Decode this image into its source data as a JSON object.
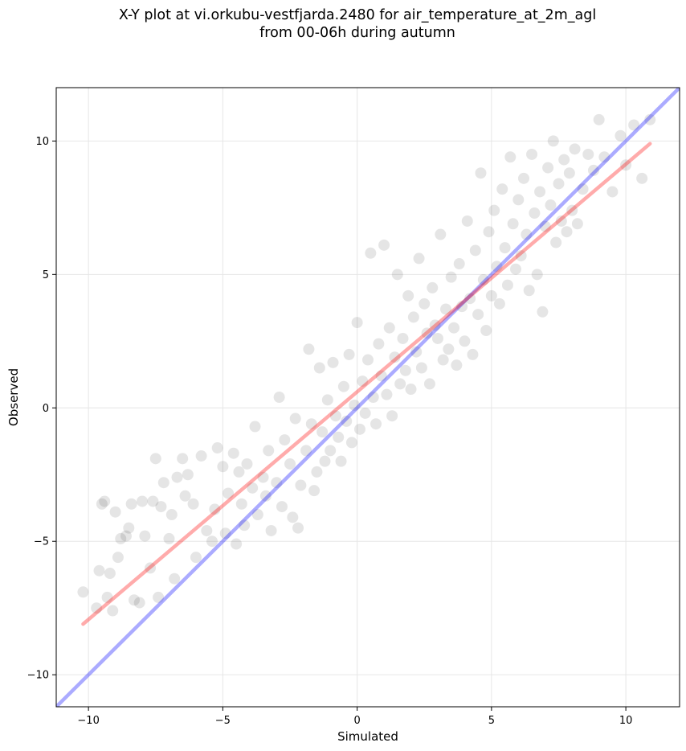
{
  "chart_data": {
    "type": "scatter",
    "title_line1": "X-Y plot at vi.orkubu-vestfjarda.2480 for air_temperature_at_2m_agl",
    "title_line2": "from 00-06h during autumn",
    "xlabel": "Simulated",
    "ylabel": "Observed",
    "xlim": [
      -11.2,
      12.0
    ],
    "ylim": [
      -11.2,
      12.0
    ],
    "xticks": [
      -10,
      -5,
      0,
      5,
      10
    ],
    "yticks": [
      -10,
      -5,
      0,
      5,
      10
    ],
    "tick_labels": [
      "−10",
      "−5",
      "0",
      "5",
      "10"
    ],
    "grid": true,
    "point_color": "#000000",
    "point_alpha": 0.1,
    "series": [
      {
        "role": "identity line",
        "color": "#0000ff",
        "x": [
          -11.2,
          12.0
        ],
        "y": [
          -11.2,
          12.0
        ]
      },
      {
        "role": "regression fit",
        "color": "#ff0000",
        "x": [
          -10.2,
          10.9
        ],
        "y": [
          -8.1,
          9.9
        ]
      }
    ],
    "points": [
      [
        -10.2,
        -6.9
      ],
      [
        -9.7,
        -7.5
      ],
      [
        -9.6,
        -6.1
      ],
      [
        -9.5,
        -3.6
      ],
      [
        -9.4,
        -3.5
      ],
      [
        -9.3,
        -7.1
      ],
      [
        -9.2,
        -6.2
      ],
      [
        -9.1,
        -7.6
      ],
      [
        -9.0,
        -3.9
      ],
      [
        -8.9,
        -5.6
      ],
      [
        -8.8,
        -4.9
      ],
      [
        -8.6,
        -4.8
      ],
      [
        -8.5,
        -4.5
      ],
      [
        -8.4,
        -3.6
      ],
      [
        -8.3,
        -7.2
      ],
      [
        -8.1,
        -7.3
      ],
      [
        -8.0,
        -3.5
      ],
      [
        -7.9,
        -4.8
      ],
      [
        -7.7,
        -6.0
      ],
      [
        -7.6,
        -3.5
      ],
      [
        -7.5,
        -1.9
      ],
      [
        -7.4,
        -7.1
      ],
      [
        -7.3,
        -3.7
      ],
      [
        -7.2,
        -2.8
      ],
      [
        -7.0,
        -4.9
      ],
      [
        -6.9,
        -4.0
      ],
      [
        -6.8,
        -6.4
      ],
      [
        -6.7,
        -2.6
      ],
      [
        -6.5,
        -1.9
      ],
      [
        -6.4,
        -3.3
      ],
      [
        -6.3,
        -2.5
      ],
      [
        -6.1,
        -3.6
      ],
      [
        -6.0,
        -5.6
      ],
      [
        -5.8,
        -1.8
      ],
      [
        -5.6,
        -4.6
      ],
      [
        -5.4,
        -5.0
      ],
      [
        -5.3,
        -3.8
      ],
      [
        -5.2,
        -1.5
      ],
      [
        -5.0,
        -2.2
      ],
      [
        -4.9,
        -4.7
      ],
      [
        -4.8,
        -3.2
      ],
      [
        -4.6,
        -1.7
      ],
      [
        -4.5,
        -5.1
      ],
      [
        -4.4,
        -2.4
      ],
      [
        -4.3,
        -3.6
      ],
      [
        -4.2,
        -4.4
      ],
      [
        -4.1,
        -2.1
      ],
      [
        -3.9,
        -3.0
      ],
      [
        -3.8,
        -0.7
      ],
      [
        -3.7,
        -4.0
      ],
      [
        -3.5,
        -2.6
      ],
      [
        -3.4,
        -3.3
      ],
      [
        -3.3,
        -1.6
      ],
      [
        -3.2,
        -4.6
      ],
      [
        -3.0,
        -2.8
      ],
      [
        -2.9,
        0.4
      ],
      [
        -2.8,
        -3.7
      ],
      [
        -2.7,
        -1.2
      ],
      [
        -2.5,
        -2.1
      ],
      [
        -2.4,
        -4.1
      ],
      [
        -2.3,
        -0.4
      ],
      [
        -2.2,
        -4.5
      ],
      [
        -2.1,
        -2.9
      ],
      [
        -1.9,
        -1.6
      ],
      [
        -1.8,
        2.2
      ],
      [
        -1.7,
        -0.6
      ],
      [
        -1.6,
        -3.1
      ],
      [
        -1.5,
        -2.4
      ],
      [
        -1.4,
        1.5
      ],
      [
        -1.3,
        -0.9
      ],
      [
        -1.2,
        -2.0
      ],
      [
        -1.1,
        0.3
      ],
      [
        -1.0,
        -1.6
      ],
      [
        -0.9,
        1.7
      ],
      [
        -0.8,
        -0.3
      ],
      [
        -0.7,
        -1.1
      ],
      [
        -0.6,
        -2.0
      ],
      [
        -0.5,
        0.8
      ],
      [
        -0.4,
        -0.5
      ],
      [
        -0.3,
        2.0
      ],
      [
        -0.2,
        -1.3
      ],
      [
        -0.1,
        0.1
      ],
      [
        0.0,
        3.2
      ],
      [
        0.1,
        -0.8
      ],
      [
        0.2,
        1.0
      ],
      [
        0.3,
        -0.2
      ],
      [
        0.4,
        1.8
      ],
      [
        0.5,
        5.8
      ],
      [
        0.6,
        0.4
      ],
      [
        0.7,
        -0.6
      ],
      [
        0.8,
        2.4
      ],
      [
        0.9,
        1.2
      ],
      [
        1.0,
        6.1
      ],
      [
        1.1,
        0.5
      ],
      [
        1.2,
        3.0
      ],
      [
        1.3,
        -0.3
      ],
      [
        1.4,
        1.9
      ],
      [
        1.5,
        5.0
      ],
      [
        1.6,
        0.9
      ],
      [
        1.7,
        2.6
      ],
      [
        1.8,
        1.4
      ],
      [
        1.9,
        4.2
      ],
      [
        2.0,
        0.7
      ],
      [
        2.1,
        3.4
      ],
      [
        2.2,
        2.1
      ],
      [
        2.3,
        5.6
      ],
      [
        2.4,
        1.5
      ],
      [
        2.5,
        3.9
      ],
      [
        2.6,
        2.8
      ],
      [
        2.7,
        0.9
      ],
      [
        2.8,
        4.5
      ],
      [
        2.9,
        3.1
      ],
      [
        3.0,
        2.6
      ],
      [
        3.1,
        6.5
      ],
      [
        3.2,
        1.8
      ],
      [
        3.3,
        3.7
      ],
      [
        3.4,
        2.2
      ],
      [
        3.5,
        4.9
      ],
      [
        3.6,
        3.0
      ],
      [
        3.7,
        1.6
      ],
      [
        3.8,
        5.4
      ],
      [
        3.9,
        3.8
      ],
      [
        4.0,
        2.5
      ],
      [
        4.1,
        7.0
      ],
      [
        4.2,
        4.1
      ],
      [
        4.3,
        2.0
      ],
      [
        4.4,
        5.9
      ],
      [
        4.5,
        3.5
      ],
      [
        4.6,
        8.8
      ],
      [
        4.7,
        4.8
      ],
      [
        4.8,
        2.9
      ],
      [
        4.9,
        6.6
      ],
      [
        5.0,
        4.2
      ],
      [
        5.1,
        7.4
      ],
      [
        5.2,
        5.3
      ],
      [
        5.3,
        3.9
      ],
      [
        5.4,
        8.2
      ],
      [
        5.5,
        6.0
      ],
      [
        5.6,
        4.6
      ],
      [
        5.7,
        9.4
      ],
      [
        5.8,
        6.9
      ],
      [
        5.9,
        5.2
      ],
      [
        6.0,
        7.8
      ],
      [
        6.1,
        5.7
      ],
      [
        6.2,
        8.6
      ],
      [
        6.3,
        6.5
      ],
      [
        6.4,
        4.4
      ],
      [
        6.5,
        9.5
      ],
      [
        6.6,
        7.3
      ],
      [
        6.7,
        5.0
      ],
      [
        6.8,
        8.1
      ],
      [
        6.9,
        3.6
      ],
      [
        7.0,
        6.8
      ],
      [
        7.1,
        9.0
      ],
      [
        7.2,
        7.6
      ],
      [
        7.3,
        10.0
      ],
      [
        7.4,
        6.2
      ],
      [
        7.5,
        8.4
      ],
      [
        7.6,
        7.0
      ],
      [
        7.7,
        9.3
      ],
      [
        7.8,
        6.6
      ],
      [
        7.9,
        8.8
      ],
      [
        8.0,
        7.4
      ],
      [
        8.1,
        9.7
      ],
      [
        8.2,
        6.9
      ],
      [
        8.4,
        8.2
      ],
      [
        8.6,
        9.5
      ],
      [
        8.8,
        8.9
      ],
      [
        9.0,
        10.8
      ],
      [
        9.2,
        9.4
      ],
      [
        9.5,
        8.1
      ],
      [
        9.8,
        10.2
      ],
      [
        10.0,
        9.1
      ],
      [
        10.3,
        10.6
      ],
      [
        10.6,
        8.6
      ],
      [
        10.9,
        10.8
      ]
    ]
  }
}
